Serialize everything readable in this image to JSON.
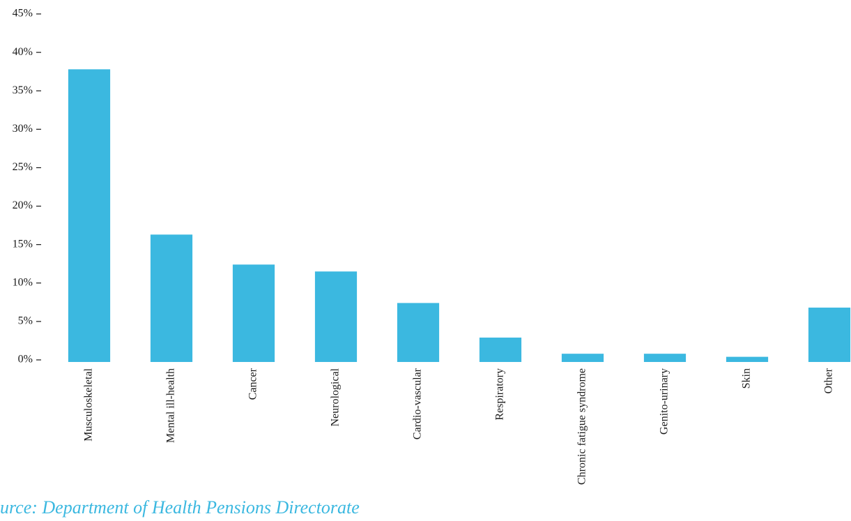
{
  "chart_data": {
    "type": "bar",
    "categories": [
      "Musculoskeletal",
      "Mental ill-health",
      "Cancer",
      "Neurological",
      "Cardio-vascular",
      "Respiratory",
      "Chronic fatigue syndrome",
      "Genito-urinary",
      "Skin",
      "Other"
    ],
    "values": [
      37.8,
      16.3,
      12.4,
      11.5,
      7.4,
      2.9,
      0.8,
      0.8,
      0.4,
      6.8
    ],
    "color": "#3bb8e0",
    "ylim": [
      0,
      45
    ],
    "yticks": [
      {
        "value": 0,
        "label": "0%"
      },
      {
        "value": 5,
        "label": "5%"
      },
      {
        "value": 10,
        "label": "10%"
      },
      {
        "value": 15,
        "label": "15%"
      },
      {
        "value": 20,
        "label": "20%"
      },
      {
        "value": 25,
        "label": "25%"
      },
      {
        "value": 30,
        "label": "30%"
      },
      {
        "value": 35,
        "label": "35%"
      },
      {
        "value": 40,
        "label": "40%"
      },
      {
        "value": 45,
        "label": "45%"
      }
    ],
    "grid": false,
    "source": "urce: Department of Health Pensions Directorate"
  }
}
